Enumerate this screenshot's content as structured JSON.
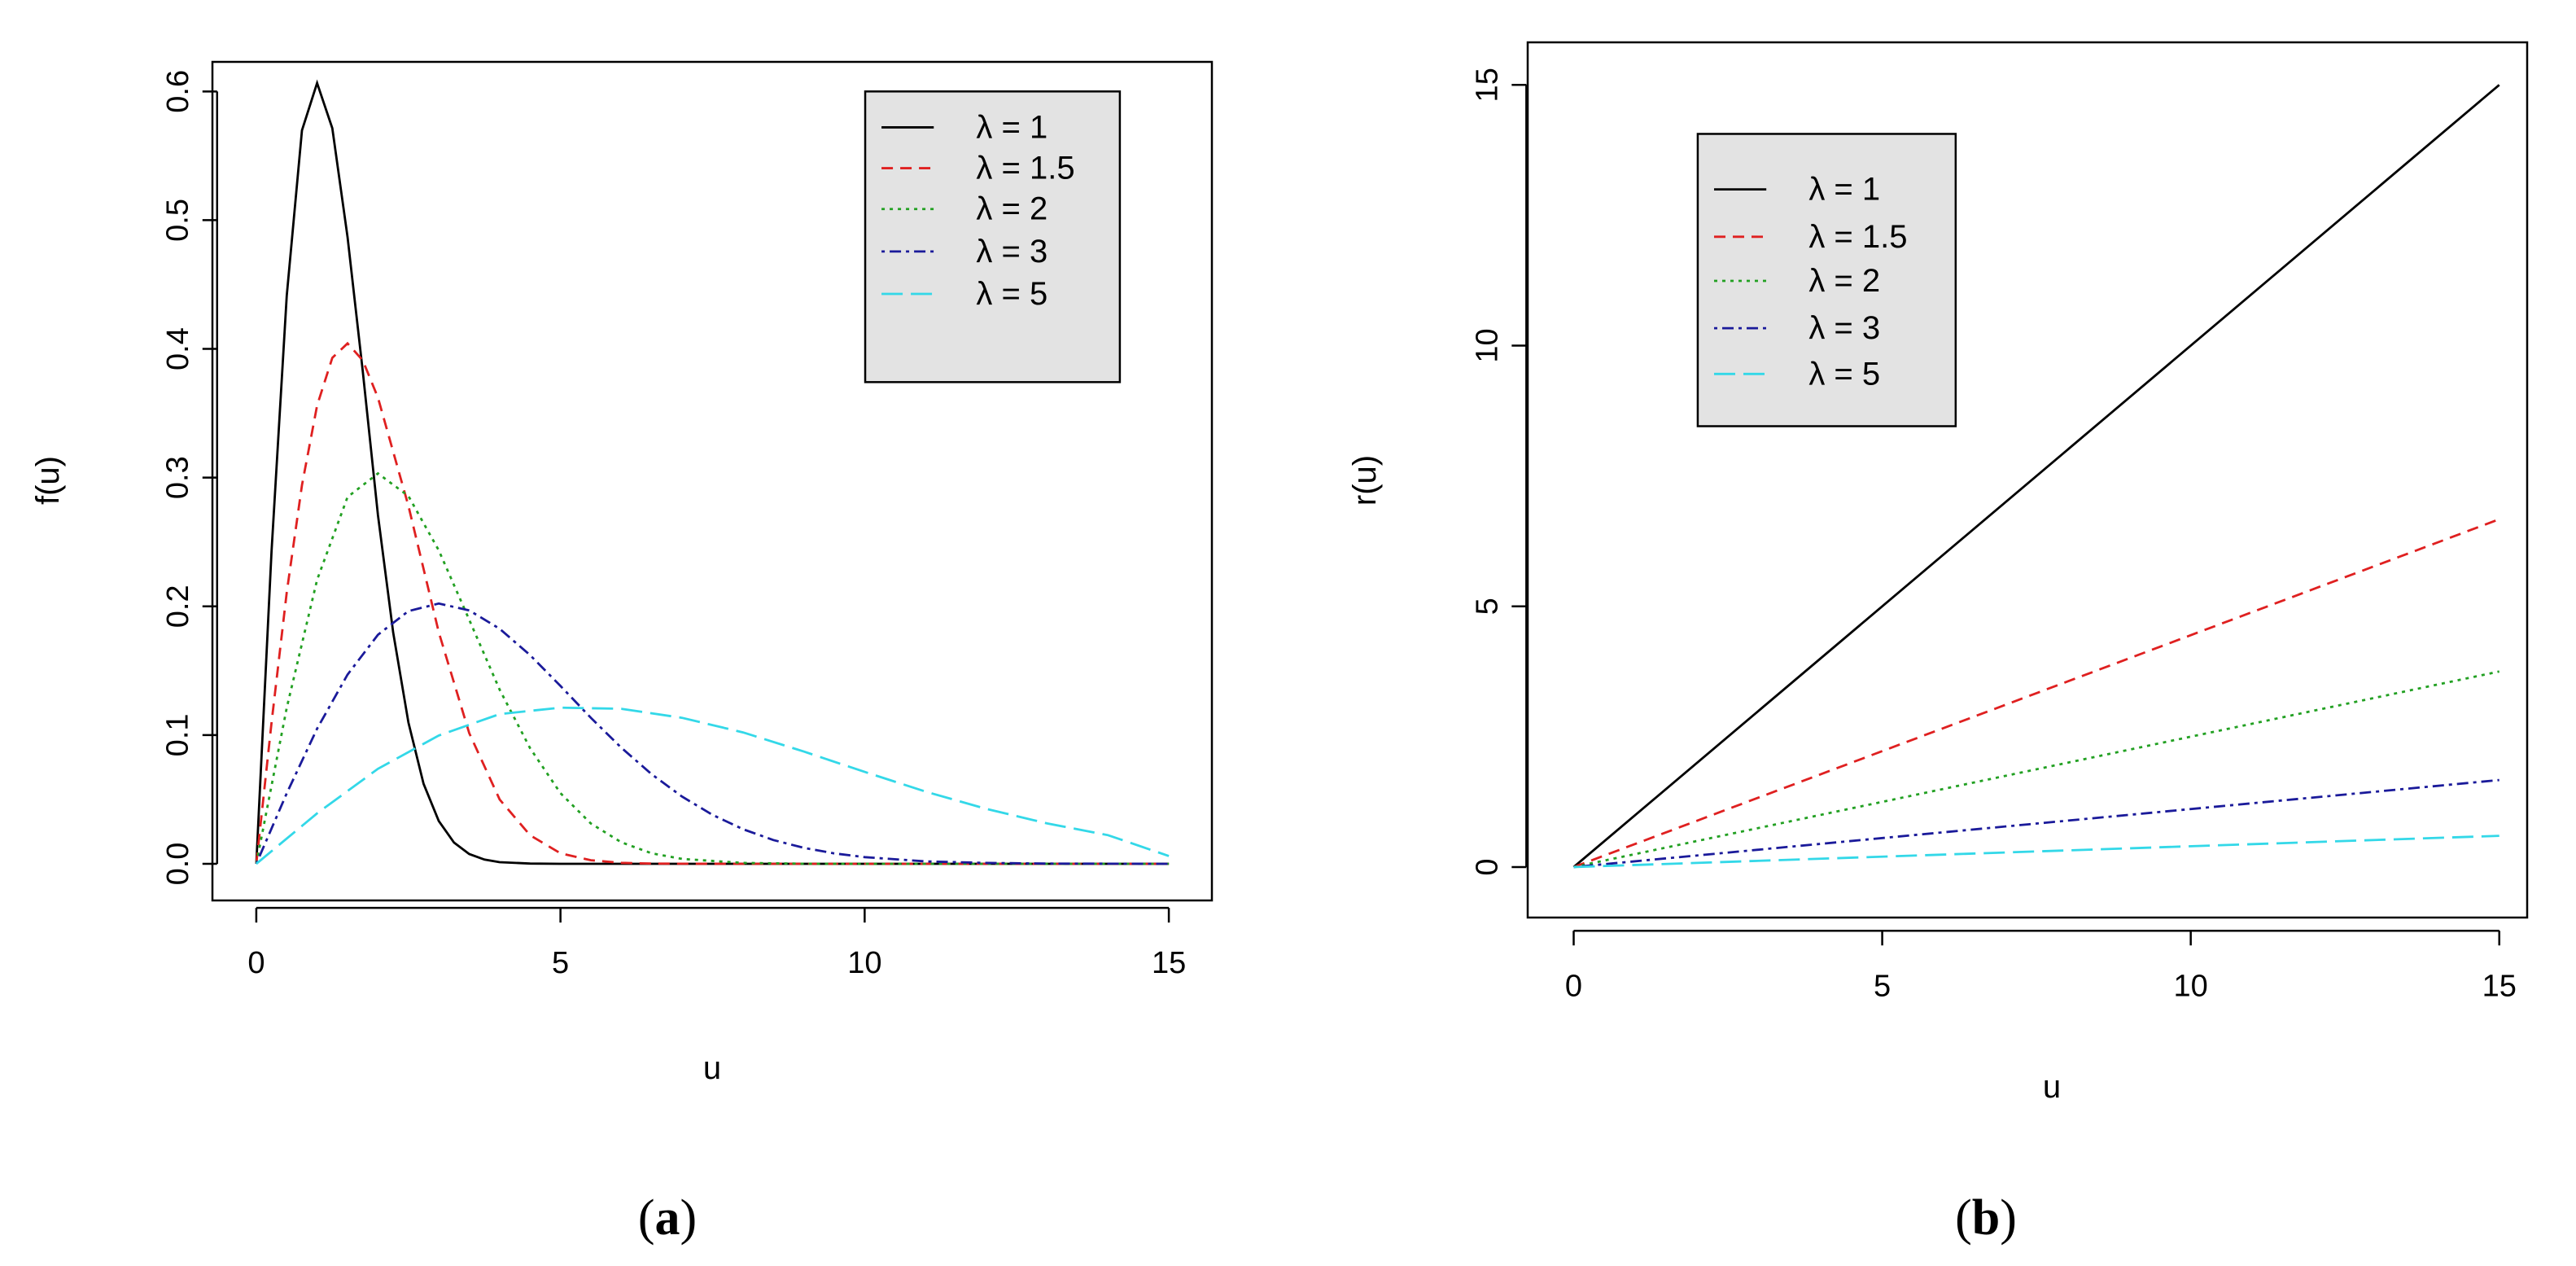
{
  "panel_labels": [
    {
      "open": "(",
      "letter": "a",
      "close": ")"
    },
    {
      "open": "(",
      "letter": "b",
      "close": ")"
    }
  ],
  "legend_entries": [
    "λ = 1",
    "λ = 1.5",
    "λ = 2",
    "λ = 3",
    "λ = 5"
  ],
  "colors": {
    "lambda_1": "#000000",
    "lambda_1_5": "#DF2020",
    "lambda_2": "#22A022",
    "lambda_3": "#1A1A9A",
    "lambda_5": "#33D8E8",
    "legend_bg": "#E3E3E3"
  },
  "chart_data": [
    {
      "type": "line",
      "xlabel": "u",
      "ylabel": "f(u)",
      "xlim": [
        0,
        15
      ],
      "ylim": [
        0,
        0.6
      ],
      "xticks": [
        0,
        5,
        10,
        15
      ],
      "xtick_labels": [
        "0",
        "5",
        "10",
        "15"
      ],
      "yticks": [
        0,
        0.1,
        0.2,
        0.3,
        0.4,
        0.5,
        0.6
      ],
      "ytick_labels": [
        "0.0",
        "0.1",
        "0.2",
        "0.3",
        "0.4",
        "0.5",
        "0.6"
      ],
      "legend_position": "top-right",
      "series": [
        {
          "name": "λ = 1",
          "color": "#000000",
          "dash": "solid",
          "x": [
            0,
            0.25,
            0.5,
            0.75,
            1,
            1.25,
            1.5,
            1.75,
            2,
            2.25,
            2.5,
            2.75,
            3,
            3.25,
            3.5,
            3.75,
            4,
            4.5,
            5,
            6,
            8,
            10,
            15
          ],
          "y": [
            0,
            0.2424,
            0.4412,
            0.5697,
            0.6065,
            0.5714,
            0.487,
            0.3827,
            0.2707,
            0.1796,
            0.1098,
            0.0622,
            0.0333,
            0.0165,
            0.0076,
            0.0033,
            0.0013,
            0.0002,
            0,
            0,
            0,
            0,
            0
          ]
        },
        {
          "name": "λ = 1.5",
          "color": "#DF2020",
          "dash": "dashed",
          "x": [
            0,
            0.25,
            0.5,
            0.75,
            1,
            1.25,
            1.5,
            1.75,
            2,
            2.5,
            3,
            3.5,
            4,
            4.5,
            5,
            5.5,
            6,
            6.5,
            7,
            8,
            10,
            15
          ],
          "y": [
            0,
            0.1095,
            0.2108,
            0.2941,
            0.356,
            0.3931,
            0.4043,
            0.3911,
            0.3621,
            0.2781,
            0.1799,
            0.1016,
            0.05,
            0.0222,
            0.0082,
            0.0028,
            0.0008,
            0.0002,
            0.0001,
            0,
            0,
            0
          ]
        },
        {
          "name": "λ = 2",
          "color": "#22A022",
          "dash": "dotted",
          "x": [
            0,
            0.5,
            1,
            1.5,
            2,
            2.5,
            3,
            3.5,
            4,
            4.5,
            5,
            5.5,
            6,
            6.5,
            7,
            8,
            9,
            10,
            15
          ],
          "y": [
            0,
            0.1212,
            0.2206,
            0.2849,
            0.3033,
            0.2857,
            0.2435,
            0.1896,
            0.1353,
            0.0898,
            0.0549,
            0.0313,
            0.0167,
            0.0082,
            0.0038,
            0.0007,
            0.0001,
            0,
            0
          ]
        },
        {
          "name": "λ = 3",
          "color": "#1A1A9A",
          "dash": "dotdash",
          "x": [
            0,
            0.5,
            1,
            1.5,
            2,
            2.5,
            3,
            3.5,
            4,
            4.5,
            5,
            5.5,
            6,
            6.5,
            7,
            7.5,
            8,
            8.5,
            9,
            9.5,
            10,
            11,
            12,
            13,
            15
          ],
          "y": [
            0,
            0.0548,
            0.105,
            0.147,
            0.178,
            0.1963,
            0.2022,
            0.1969,
            0.1826,
            0.1621,
            0.1382,
            0.1134,
            0.0902,
            0.0696,
            0.0522,
            0.038,
            0.0269,
            0.0185,
            0.0124,
            0.0081,
            0.0052,
            0.0019,
            0.0007,
            0.0002,
            0
          ]
        },
        {
          "name": "λ = 5",
          "color": "#33D8E8",
          "dash": "longdash",
          "x": [
            0,
            1,
            2,
            3,
            4,
            5,
            6,
            7,
            8,
            9,
            10,
            11,
            12,
            13,
            14,
            15
          ],
          "y": [
            0,
            0.0392,
            0.0738,
            0.0997,
            0.1163,
            0.1213,
            0.1204,
            0.1134,
            0.1021,
            0.0872,
            0.0714,
            0.0561,
            0.0427,
            0.0314,
            0.0223,
            0.0061
          ]
        }
      ]
    },
    {
      "type": "line",
      "xlabel": "u",
      "ylabel": "r(u)",
      "xlim": [
        0,
        15
      ],
      "ylim": [
        0,
        15
      ],
      "xticks": [
        0,
        5,
        10,
        15
      ],
      "xtick_labels": [
        "0",
        "5",
        "10",
        "15"
      ],
      "yticks": [
        0,
        5,
        10,
        15
      ],
      "ytick_labels": [
        "0",
        "5",
        "10",
        "15"
      ],
      "legend_position": "top-left",
      "series": [
        {
          "name": "λ = 1",
          "color": "#000000",
          "dash": "solid",
          "x": [
            0,
            15
          ],
          "y": [
            0,
            15
          ]
        },
        {
          "name": "λ = 1.5",
          "color": "#DF2020",
          "dash": "dashed",
          "x": [
            0,
            15
          ],
          "y": [
            0,
            6.67
          ]
        },
        {
          "name": "λ = 2",
          "color": "#22A022",
          "dash": "dotted",
          "x": [
            0,
            15
          ],
          "y": [
            0,
            3.75
          ]
        },
        {
          "name": "λ = 3",
          "color": "#1A1A9A",
          "dash": "dotdash",
          "x": [
            0,
            15
          ],
          "y": [
            0,
            1.67
          ]
        },
        {
          "name": "λ = 5",
          "color": "#33D8E8",
          "dash": "longdash",
          "x": [
            0,
            15
          ],
          "y": [
            0,
            0.6
          ]
        }
      ]
    }
  ]
}
